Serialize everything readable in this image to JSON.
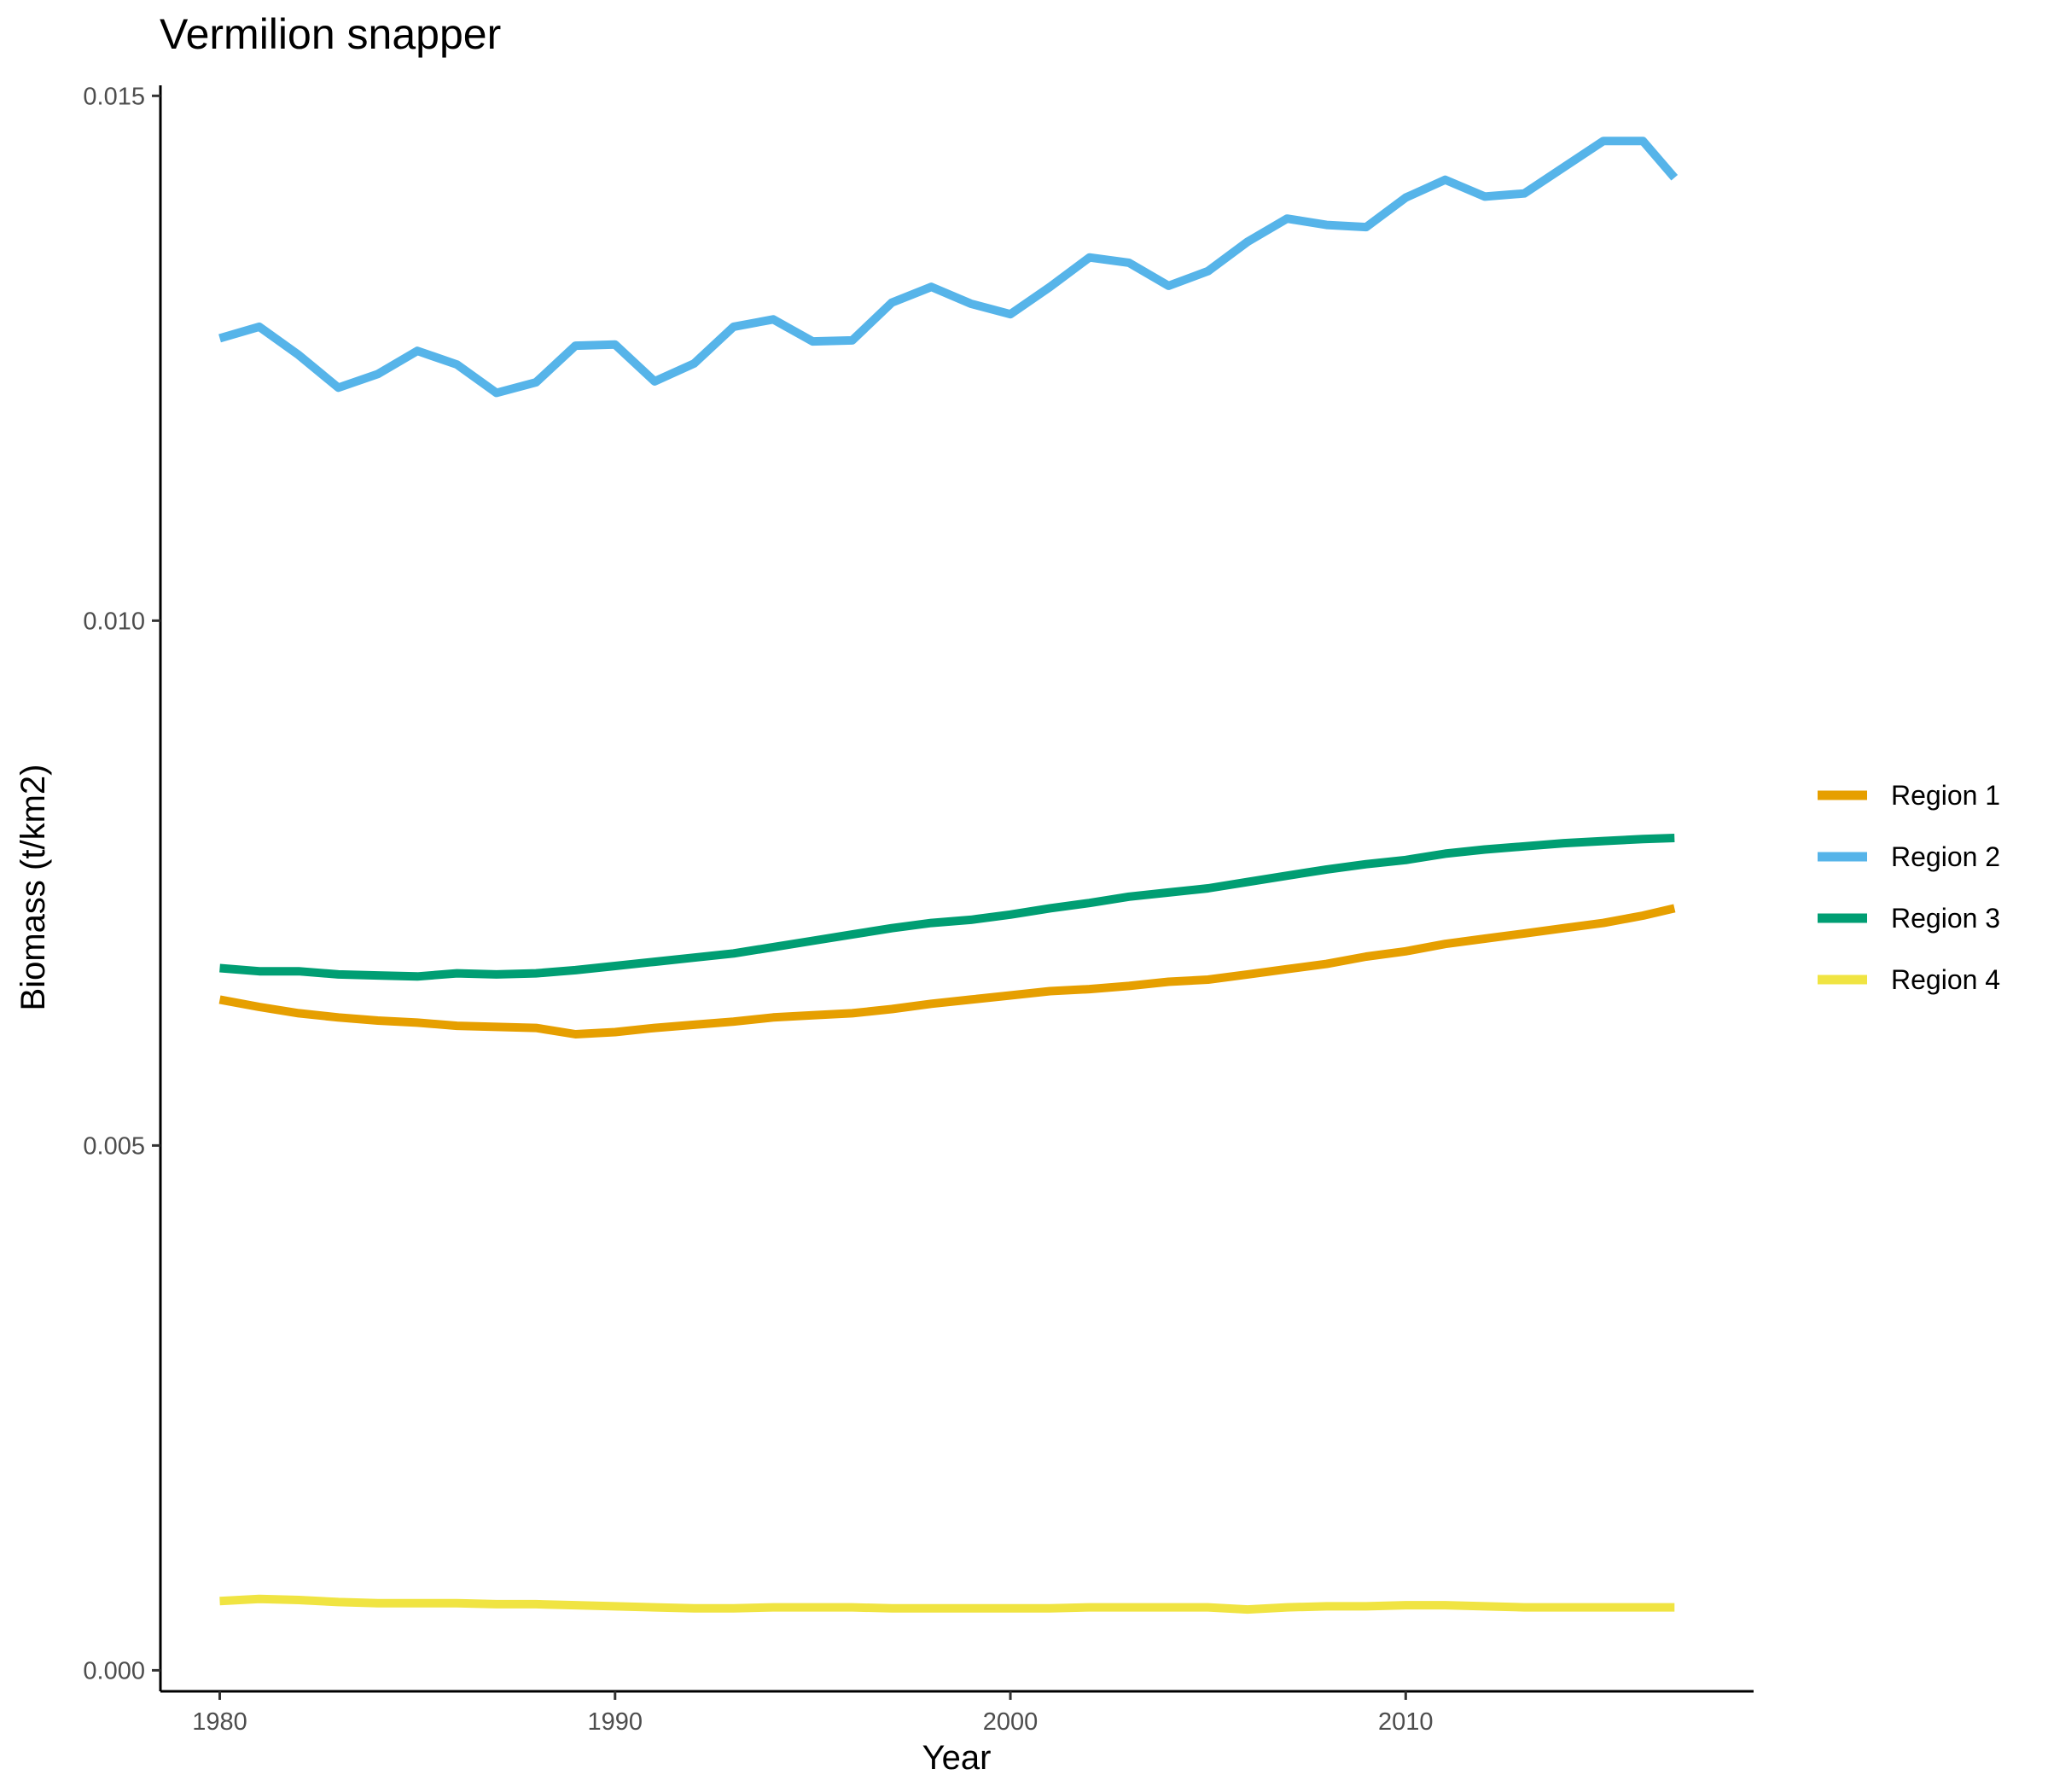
{
  "chart_data": {
    "type": "line",
    "title": "Vermilion snapper",
    "xlabel": "Year",
    "ylabel": "Biomass (t/km2)",
    "xlim": [
      1978.5,
      2018.8
    ],
    "ylim": [
      -0.0002,
      0.0151
    ],
    "x_ticks": [
      1980,
      1990,
      2000,
      2010
    ],
    "x_tick_labels": [
      "1980",
      "1990",
      "2000",
      "2010"
    ],
    "y_ticks": [
      0.0,
      0.005,
      0.01,
      0.015
    ],
    "y_tick_labels": [
      "0.000",
      "0.005",
      "0.010",
      "0.015"
    ],
    "grid": false,
    "legend_position": "right",
    "x": [
      1980,
      1981,
      1982,
      1983,
      1984,
      1985,
      1986,
      1987,
      1988,
      1989,
      1990,
      1991,
      1992,
      1993,
      1994,
      1995,
      1996,
      1997,
      1998,
      1999,
      2000,
      2001,
      2002,
      2003,
      2004,
      2005,
      2006,
      2007,
      2008,
      2009,
      2010,
      2011,
      2012,
      2013,
      2014,
      2015,
      2016,
      2016.8
    ],
    "series": [
      {
        "name": "Region 1",
        "color": "#E69F00",
        "values": [
          0.00639,
          0.00632,
          0.00626,
          0.00622,
          0.00619,
          0.00617,
          0.00614,
          0.00613,
          0.00612,
          0.00606,
          0.00608,
          0.00612,
          0.00615,
          0.00618,
          0.00622,
          0.00624,
          0.00626,
          0.0063,
          0.00635,
          0.00639,
          0.00643,
          0.00647,
          0.00649,
          0.00652,
          0.00656,
          0.00658,
          0.00663,
          0.00668,
          0.00673,
          0.0068,
          0.00685,
          0.00692,
          0.00697,
          0.00702,
          0.00707,
          0.00712,
          0.00719,
          0.00726
        ]
      },
      {
        "name": "Region 2",
        "color": "#56B4E9",
        "values": [
          0.01269,
          0.0128,
          0.01253,
          0.01222,
          0.01235,
          0.01257,
          0.01244,
          0.01217,
          0.01227,
          0.01262,
          0.01263,
          0.01228,
          0.01245,
          0.0128,
          0.01287,
          0.01266,
          0.01267,
          0.01303,
          0.01318,
          0.01302,
          0.01292,
          0.01318,
          0.01346,
          0.01341,
          0.01319,
          0.01333,
          0.01361,
          0.01383,
          0.01377,
          0.01375,
          0.01403,
          0.0142,
          0.01404,
          0.01407,
          0.01432,
          0.01457,
          0.01457,
          0.01422
        ]
      },
      {
        "name": "Region 3",
        "color": "#009E73",
        "values": [
          0.00669,
          0.00666,
          0.00666,
          0.00663,
          0.00662,
          0.00661,
          0.00664,
          0.00663,
          0.00664,
          0.00667,
          0.00671,
          0.00675,
          0.00679,
          0.00683,
          0.00689,
          0.00695,
          0.00701,
          0.00707,
          0.00712,
          0.00715,
          0.0072,
          0.00726,
          0.00731,
          0.00737,
          0.00741,
          0.00745,
          0.00751,
          0.00757,
          0.00763,
          0.00768,
          0.00772,
          0.00778,
          0.00782,
          0.00785,
          0.00788,
          0.0079,
          0.00792,
          0.00793
        ]
      },
      {
        "name": "Region 4",
        "color": "#F0E442",
        "values": [
          0.00066,
          0.00068,
          0.00067,
          0.00065,
          0.00064,
          0.00064,
          0.00064,
          0.00063,
          0.00063,
          0.00062,
          0.00061,
          0.0006,
          0.00059,
          0.00059,
          0.0006,
          0.0006,
          0.0006,
          0.00059,
          0.00059,
          0.00059,
          0.00059,
          0.00059,
          0.0006,
          0.0006,
          0.0006,
          0.0006,
          0.00058,
          0.0006,
          0.00061,
          0.00061,
          0.00062,
          0.00062,
          0.00061,
          0.0006,
          0.0006,
          0.0006,
          0.0006,
          0.0006
        ]
      }
    ]
  }
}
